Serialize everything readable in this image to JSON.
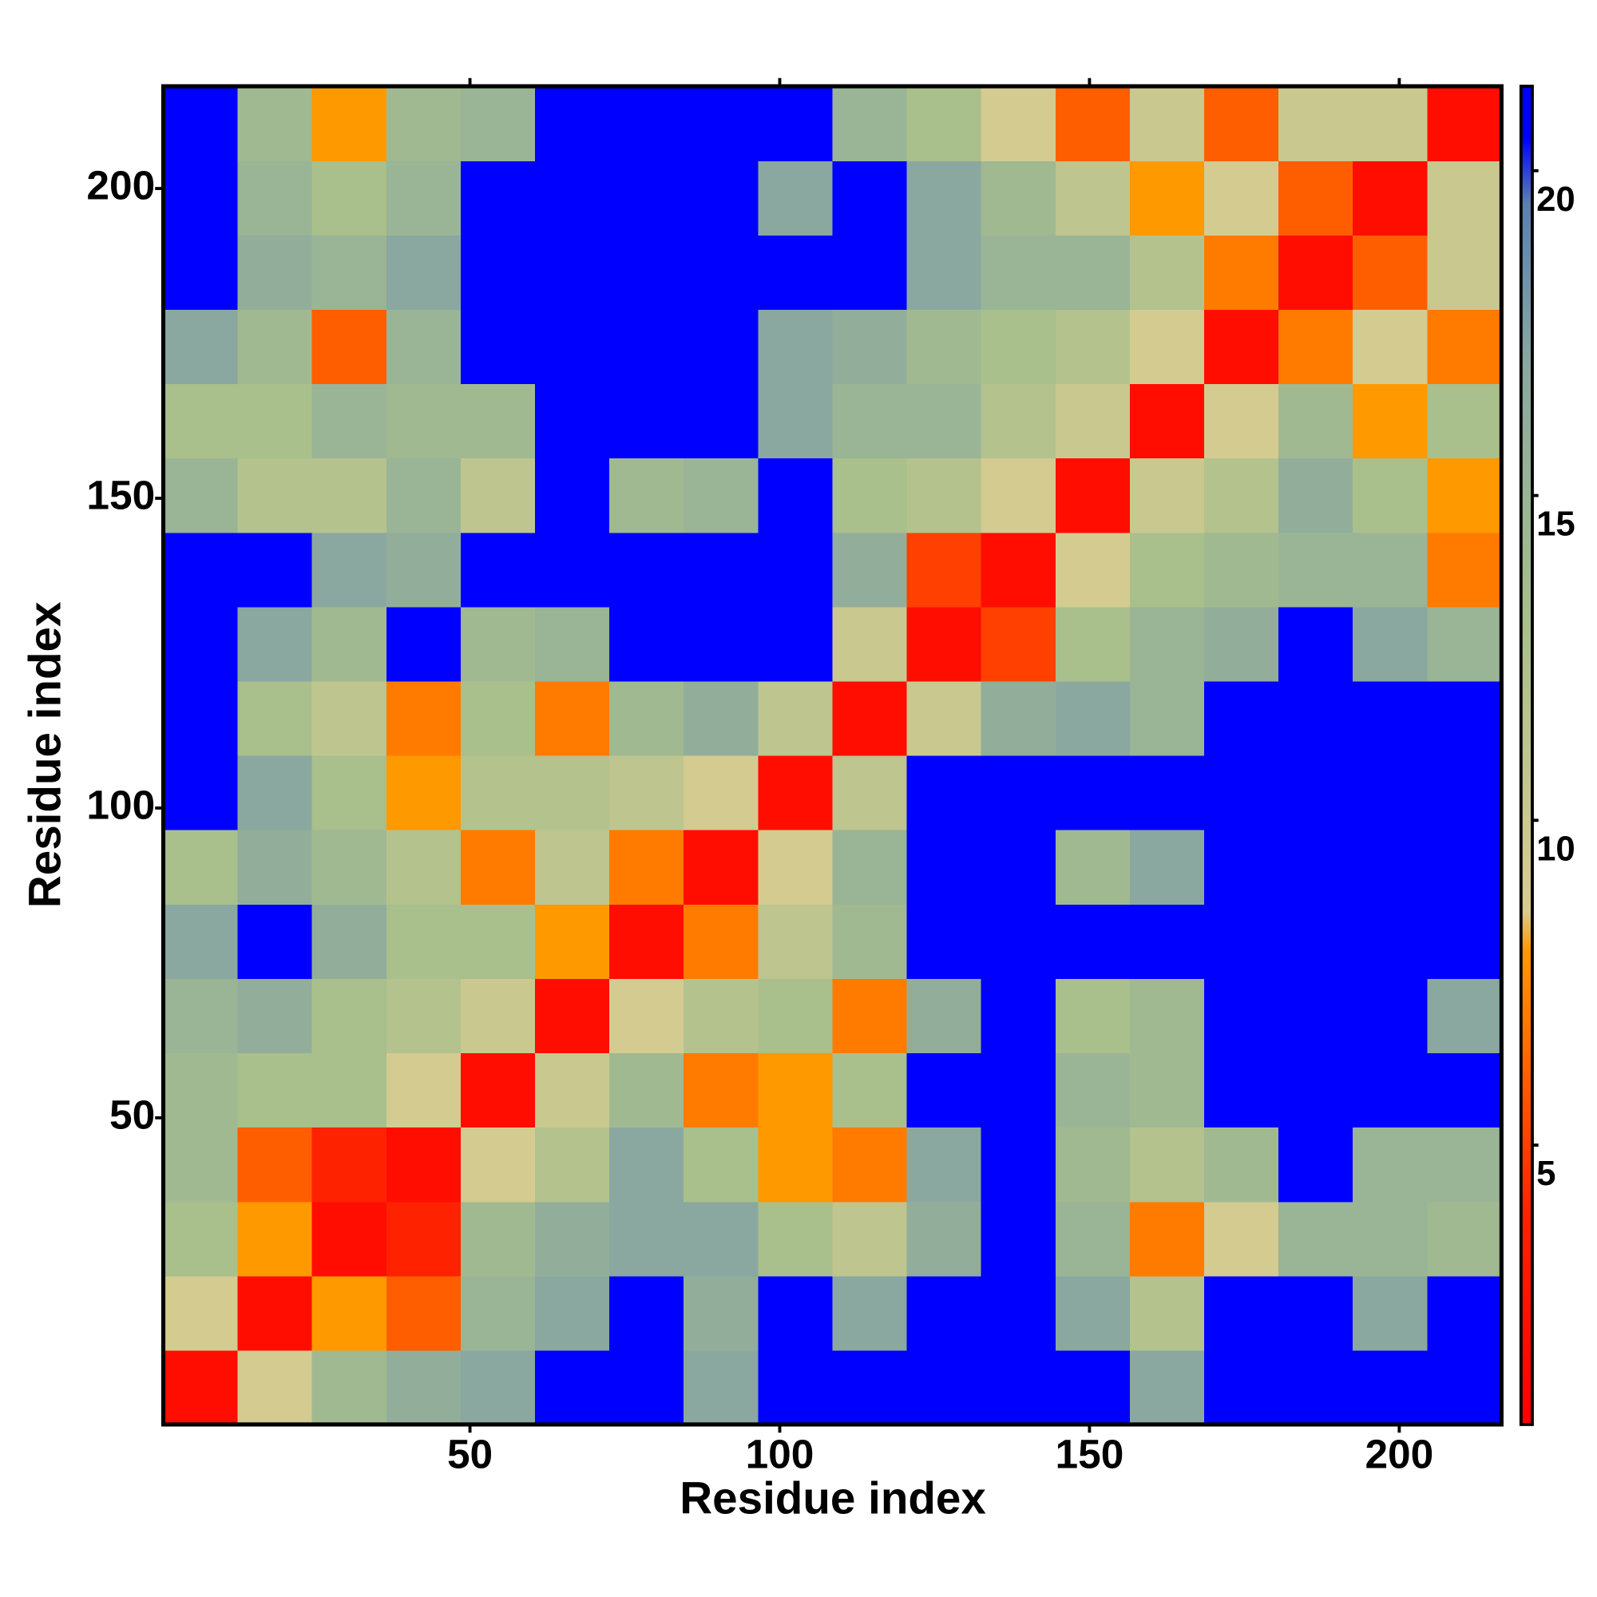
{
  "chart_data": {
    "type": "heatmap",
    "x_label": "Residue index",
    "y_label": "Residue index",
    "x": [
      6.5,
      18.5,
      30.5,
      42.5,
      54.5,
      66.5,
      78.5,
      90.5,
      102.5,
      114.5,
      126.5,
      138.5,
      150.5,
      162.5,
      174.5,
      186.5,
      198.5,
      210.5
    ],
    "y": [
      6.5,
      18.5,
      30.5,
      42.5,
      54.5,
      66.5,
      78.5,
      90.5,
      102.5,
      114.5,
      126.5,
      138.5,
      150.5,
      162.5,
      174.5,
      186.5,
      198.5,
      210.5
    ],
    "values": [
      [
        2,
        9,
        14,
        16,
        17,
        21,
        21,
        17,
        21,
        21,
        21,
        21,
        21,
        17,
        21,
        21,
        21,
        21
      ],
      [
        9,
        2,
        8,
        6,
        15,
        17,
        21,
        16,
        21,
        17,
        21,
        21,
        17,
        12,
        21,
        21,
        17,
        21
      ],
      [
        13,
        8,
        2,
        4,
        14,
        16,
        17,
        17,
        13,
        11,
        16,
        21,
        15,
        7,
        9,
        15,
        15,
        14
      ],
      [
        14,
        6,
        4,
        2,
        9,
        12,
        17,
        13,
        8,
        7,
        17,
        21,
        14,
        12,
        14,
        21,
        15,
        15
      ],
      [
        14,
        13,
        13,
        9,
        2,
        10,
        14,
        7,
        8,
        13,
        21,
        21,
        15,
        14,
        21,
        21,
        21,
        21
      ],
      [
        15,
        16,
        13,
        12,
        10,
        2,
        9,
        12,
        13,
        7,
        16,
        21,
        13,
        14,
        21,
        21,
        21,
        17
      ],
      [
        17,
        21,
        16,
        13,
        13,
        8,
        2,
        7,
        11,
        14,
        21,
        21,
        21,
        21,
        21,
        21,
        21,
        21
      ],
      [
        13,
        16,
        14,
        12,
        7,
        11,
        7,
        2,
        9,
        15,
        21,
        21,
        14,
        17,
        21,
        21,
        21,
        21
      ],
      [
        21,
        17,
        13,
        8,
        12,
        12,
        11,
        9,
        2,
        11,
        21,
        21,
        21,
        21,
        21,
        21,
        21,
        21
      ],
      [
        21,
        13,
        11,
        7,
        13,
        7,
        14,
        16,
        11,
        2,
        10,
        16,
        17,
        15,
        21,
        21,
        21,
        21
      ],
      [
        21,
        17,
        14,
        21,
        14,
        15,
        21,
        21,
        21,
        10,
        2,
        5,
        13,
        15,
        16,
        21,
        17,
        15
      ],
      [
        21,
        21,
        17,
        16,
        21,
        21,
        21,
        21,
        21,
        16,
        5,
        2,
        9,
        13,
        14,
        15,
        15,
        7
      ],
      [
        15,
        12,
        12,
        15,
        11,
        21,
        14,
        15,
        21,
        13,
        12,
        9,
        2,
        10,
        12,
        16,
        13,
        8
      ],
      [
        13,
        13,
        15,
        14,
        14,
        21,
        21,
        21,
        17,
        15,
        15,
        12,
        10,
        2,
        9,
        14,
        8,
        13
      ],
      [
        17,
        14,
        6,
        15,
        21,
        21,
        21,
        21,
        17,
        16,
        14,
        13,
        12,
        9,
        2,
        7,
        9,
        7
      ],
      [
        21,
        16,
        15,
        17,
        21,
        21,
        21,
        21,
        21,
        21,
        17,
        15,
        15,
        12,
        7,
        2,
        6,
        10
      ],
      [
        21,
        15,
        13,
        15,
        21,
        21,
        21,
        21,
        17,
        21,
        17,
        14,
        11,
        8,
        9,
        6,
        2,
        10
      ],
      [
        21,
        14,
        8,
        14,
        15,
        21,
        21,
        21,
        21,
        15,
        13,
        9,
        6,
        10,
        6,
        10,
        10,
        2
      ]
    ],
    "xlim": [
      0.5,
      216.5
    ],
    "ylim": [
      0.5,
      216.5
    ],
    "xticks": [
      50,
      100,
      150,
      200
    ],
    "yticks": [
      50,
      100,
      150,
      200
    ],
    "zlim": [
      0.7,
      21.3
    ],
    "zticks": [
      5,
      10,
      15,
      20
    ],
    "colorscale": [
      [
        0.7,
        "#ff0000"
      ],
      [
        4,
        "#ff2200"
      ],
      [
        8,
        "#ff9900"
      ],
      [
        8.6,
        "#d8cc90"
      ],
      [
        13,
        "#a9bf8c"
      ],
      [
        17,
        "#8aa8a0"
      ],
      [
        19.5,
        "#5b7fb0"
      ],
      [
        20.5,
        "#0000ff"
      ],
      [
        21.3,
        "#0000ff"
      ]
    ]
  }
}
